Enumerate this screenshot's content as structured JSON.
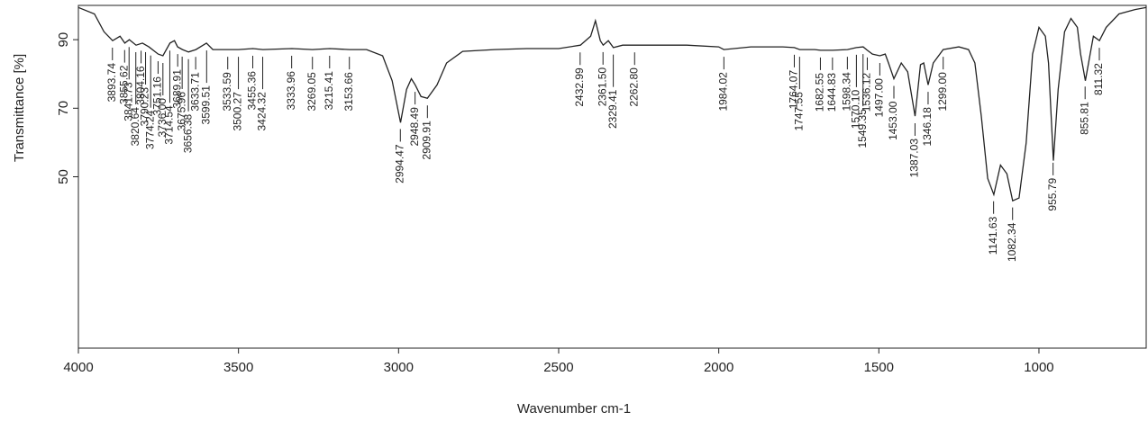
{
  "chart_data": {
    "type": "line",
    "x_label": "Wavenumber cm-1",
    "y_label": "Transmittance [%]",
    "color": "#222222",
    "xlim": [
      4000,
      665
    ],
    "xticks": [
      4000,
      3500,
      3000,
      2500,
      2000,
      1500,
      1000
    ],
    "ylim": [
      0,
      100
    ],
    "yticks": [
      50,
      70,
      90
    ],
    "x": [
      4000,
      3950,
      3920,
      3893,
      3870,
      3855,
      3841,
      3820,
      3800,
      3780,
      3751,
      3736,
      3714,
      3700,
      3690,
      3675,
      3656,
      3633,
      3600,
      3580,
      3533,
      3500,
      3455,
      3424,
      3333,
      3269,
      3215,
      3153,
      3100,
      3050,
      3020,
      2994,
      2975,
      2960,
      2948,
      2930,
      2910,
      2880,
      2850,
      2800,
      2700,
      2600,
      2500,
      2432,
      2400,
      2385,
      2370,
      2361,
      2345,
      2329,
      2300,
      2262,
      2100,
      2000,
      1984,
      1900,
      1800,
      1764,
      1747,
      1700,
      1682,
      1644,
      1598,
      1570,
      1549,
      1536,
      1520,
      1497,
      1480,
      1470,
      1453,
      1430,
      1410,
      1387,
      1370,
      1360,
      1346,
      1330,
      1299,
      1250,
      1220,
      1200,
      1180,
      1160,
      1141,
      1120,
      1100,
      1082,
      1062,
      1040,
      1020,
      1000,
      980,
      970,
      955,
      940,
      920,
      900,
      880,
      870,
      855,
      840,
      830,
      811,
      790,
      750,
      700,
      665
    ],
    "values": [
      99.4,
      97.5,
      92.3,
      89.7,
      91,
      89,
      90,
      88.4,
      89,
      87.9,
      85.8,
      85.3,
      89,
      89.7,
      87.9,
      87.1,
      86.4,
      87.1,
      89,
      87.1,
      87.1,
      87.1,
      87.4,
      87.1,
      87.4,
      87.1,
      87.4,
      87.1,
      87.1,
      85.3,
      78,
      65.8,
      75.5,
      78.6,
      76.8,
      73.4,
      72.9,
      76.8,
      83.2,
      86.6,
      87.1,
      87.4,
      87.4,
      88.4,
      91,
      95.5,
      89.7,
      88.4,
      89.7,
      87.7,
      88.4,
      88.4,
      88.4,
      87.9,
      87.1,
      87.9,
      87.9,
      87.7,
      87.1,
      87.1,
      86.9,
      86.9,
      87.1,
      87.7,
      87.9,
      86.9,
      85.8,
      85.3,
      85.8,
      83.2,
      78.6,
      83.2,
      80.6,
      67.7,
      82.7,
      83.2,
      76.8,
      83.2,
      87.1,
      87.9,
      87.1,
      83.2,
      67.7,
      49.5,
      44.8,
      53.4,
      50.9,
      43,
      43.8,
      59.9,
      85.8,
      93.6,
      91,
      83.2,
      54.7,
      75.5,
      92.3,
      96.2,
      93.6,
      85.8,
      78,
      85.8,
      91,
      89.7,
      93.6,
      97.5,
      98.8,
      99.4
    ],
    "peaks": {
      "x": [
        3893.74,
        3855.62,
        3841.73,
        3820.64,
        3804.16,
        3790.23,
        3774.24,
        3751.16,
        3736.0,
        3714.54,
        3689.91,
        3675.96,
        3656.38,
        3633.71,
        3599.51,
        3533.59,
        3500.27,
        3455.36,
        3424.32,
        3333.96,
        3269.05,
        3215.41,
        3153.66,
        2994.47,
        2948.49,
        2909.91,
        2432.99,
        2361.5,
        2329.41,
        2262.8,
        1984.02,
        1764.07,
        1747.55,
        1682.55,
        1644.83,
        1598.34,
        1570.1,
        1549.35,
        1536.12,
        1497.0,
        1453.0,
        1387.03,
        1346.18,
        1299.0,
        1141.63,
        1082.34,
        955.79,
        855.81,
        811.32
      ],
      "labels": [
        "3893.74",
        "3855.62",
        "3841.73",
        "3820.64",
        "3804.16",
        "3790.23",
        "3774.24",
        "3751.16",
        "3736.00",
        "3714.54",
        "3689.91",
        "3675.96",
        "3656.38",
        "3633.71",
        "3599.51",
        "3533.59",
        "3500.27",
        "3455.36",
        "3424.32",
        "3333.96",
        "3269.05",
        "3215.41",
        "3153.66",
        "2994.47",
        "2948.49",
        "2909.91",
        "2432.99",
        "2361.50",
        "2329.41",
        "2262.80",
        "1984.02",
        "1764.07",
        "1747.55",
        "1682.55",
        "1644.83",
        "1598.34",
        "1570.10",
        "1549.35",
        "1536.12",
        "1497.00",
        "1453.00",
        "1387.03",
        "1346.18",
        "1299.00",
        "1141.63",
        "1082.34",
        "955.79",
        "855.81",
        "811.32"
      ]
    }
  }
}
